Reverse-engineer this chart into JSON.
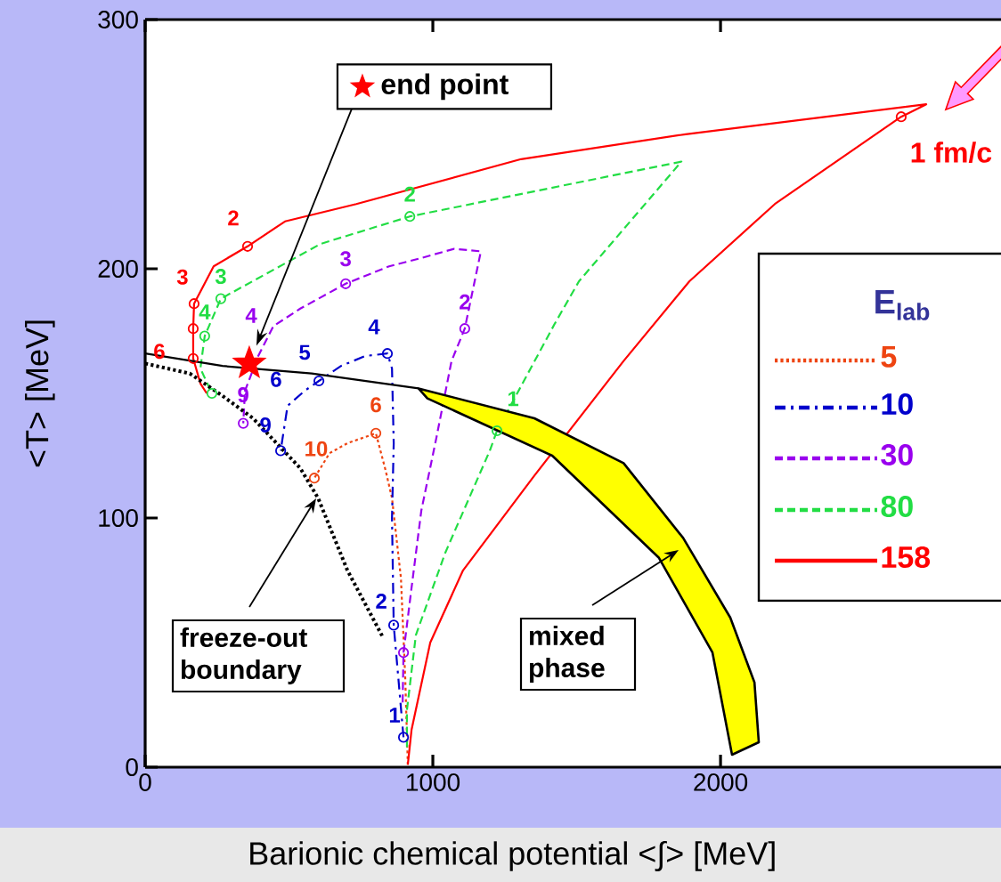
{
  "chart_data": {
    "type": "line",
    "xlabel": "Barionic chemical potential <∫> [MeV]",
    "ylabel": "<T> [MeV]",
    "legend_title": "E$_{lab}$",
    "legend": "right",
    "xlim": [
      0,
      2975
    ],
    "ylim": [
      0,
      300
    ],
    "xticks": [
      0,
      1000,
      2000
    ],
    "yticks": [
      0,
      100,
      200,
      300
    ],
    "series": [
      {
        "name": "5",
        "color": "#ee4411",
        "line_style": "dotted",
        "x": [
          913,
          904,
          889,
          858,
          836,
          802,
          703,
          641,
          588
        ],
        "values": [
          1,
          36,
          76,
          108,
          119,
          134,
          130,
          126,
          116
        ]
      },
      {
        "name": "10",
        "color": "#0000cc",
        "line_style": "dashdot",
        "x": [
          898,
          864,
          858,
          864,
          858,
          842,
          765,
          681,
          604,
          554,
          495,
          471
        ],
        "values": [
          12,
          57,
          100,
          130,
          160,
          166,
          165,
          161,
          155,
          151,
          145,
          127
        ]
      },
      {
        "name": "30",
        "color": "#9900ee",
        "line_style": "dashed",
        "x": [
          895,
          898,
          926,
          960,
          1012,
          1065,
          1111,
          1167,
          1074,
          950,
          848,
          697,
          539,
          446,
          393,
          347,
          341
        ],
        "values": [
          26,
          46,
          72,
          103,
          132,
          163,
          176,
          207,
          208,
          204,
          201,
          194,
          184,
          177,
          165,
          151,
          138
        ]
      },
      {
        "name": "80",
        "color": "#22dd44",
        "line_style": "dashed",
        "x": [
          910,
          910,
          941,
          1043,
          1198,
          1223,
          1424,
          1508,
          1864,
          920,
          610,
          263,
          207,
          192,
          232
        ],
        "values": [
          8,
          23,
          53,
          86,
          127,
          135,
          178,
          195,
          243,
          221,
          210,
          188,
          173,
          160,
          150
        ]
      },
      {
        "name": "158",
        "color": "#ff0000",
        "line_style": "solid",
        "x": [
          913,
          926,
          991,
          1105,
          1353,
          1663,
          1892,
          2189,
          2628,
          2715,
          1879,
          1307,
          734,
          486,
          356,
          238,
          170,
          167,
          167,
          192,
          214
        ],
        "values": [
          1,
          15,
          50,
          79,
          117,
          163,
          195,
          226,
          261,
          266,
          254,
          244,
          226,
          219,
          209,
          201,
          186,
          176,
          164,
          154,
          150
        ]
      },
      {
        "type": "scatter",
        "color": "#ee4411",
        "marker": "circle",
        "x": [
          802,
          588
        ],
        "values": [
          134,
          116
        ]
      },
      {
        "type": "scatter",
        "color": "#0000cc",
        "marker": "circle",
        "x": [
          898,
          864,
          842,
          604,
          471
        ],
        "values": [
          12,
          57,
          166,
          155,
          127
        ]
      },
      {
        "type": "scatter",
        "color": "#9900ee",
        "marker": "circle",
        "x": [
          898,
          1111,
          697,
          341
        ],
        "values": [
          46,
          176,
          194,
          138
        ]
      },
      {
        "type": "scatter",
        "color": "#22dd44",
        "marker": "circle",
        "x": [
          1223,
          920,
          263,
          207,
          232
        ],
        "values": [
          135,
          221,
          188,
          173,
          150
        ]
      },
      {
        "type": "scatter",
        "color": "#ff0000",
        "marker": "circle",
        "x": [
          2628,
          356,
          170,
          167,
          167
        ],
        "values": [
          261,
          209,
          186,
          176,
          164
        ]
      },
      {
        "color": "#000000",
        "line_style": "dotted",
        "x": [
          0,
          155,
          269,
          375,
          539,
          601,
          703,
          827
        ],
        "values": [
          162,
          158,
          149,
          140,
          120,
          108,
          79,
          52
        ]
      },
      {
        "color": "#000000",
        "line_style": "solid",
        "x": [
          0,
          269,
          579,
          950
        ],
        "values": [
          166,
          161,
          158,
          152
        ]
      },
      {
        "type": "area",
        "color": "#ffff00",
        "x": [
          950,
          1353,
          1663,
          1870,
          2034,
          2118,
          2133,
          2040,
          1972,
          1786,
          1415,
          981
        ],
        "values": [
          152,
          140,
          122,
          92,
          60,
          34,
          10,
          5,
          46,
          84,
          125,
          148
        ]
      },
      {
        "name": "end point",
        "type": "scatter",
        "color": "#ff0000",
        "marker": "star",
        "x": [
          362
        ],
        "values": [
          162
        ]
      }
    ],
    "annotations": [
      "freeze-out boundary",
      "mixed phase",
      {
        "text": "1 fm/c",
        "x": 2628,
        "y": 261
      },
      {
        "text": "2",
        "x": 356,
        "y": 209
      },
      {
        "text": "3",
        "x": 170,
        "y": 186
      },
      {
        "text": "6",
        "x": 167,
        "y": 164
      },
      {
        "text": "1",
        "x": 1223,
        "y": 135
      },
      {
        "text": "2",
        "x": 920,
        "y": 221
      },
      {
        "text": "3",
        "x": 263,
        "y": 188
      },
      {
        "text": "4",
        "x": 207,
        "y": 173
      },
      {
        "text": "2",
        "x": 1111,
        "y": 176
      },
      {
        "text": "3",
        "x": 697,
        "y": 194
      },
      {
        "text": "4",
        "x": 446,
        "y": 177
      },
      {
        "text": "9",
        "x": 341,
        "y": 138
      },
      {
        "text": "1",
        "x": 898,
        "y": 12
      },
      {
        "text": "2",
        "x": 864,
        "y": 57
      },
      {
        "text": "4",
        "x": 842,
        "y": 166
      },
      {
        "text": "5",
        "x": 604,
        "y": 155
      },
      {
        "text": "6",
        "x": 554,
        "y": 151
      },
      {
        "text": "9",
        "x": 471,
        "y": 127
      },
      {
        "text": "6",
        "x": 802,
        "y": 134
      },
      {
        "text": "10",
        "x": 588,
        "y": 116
      }
    ]
  }
}
